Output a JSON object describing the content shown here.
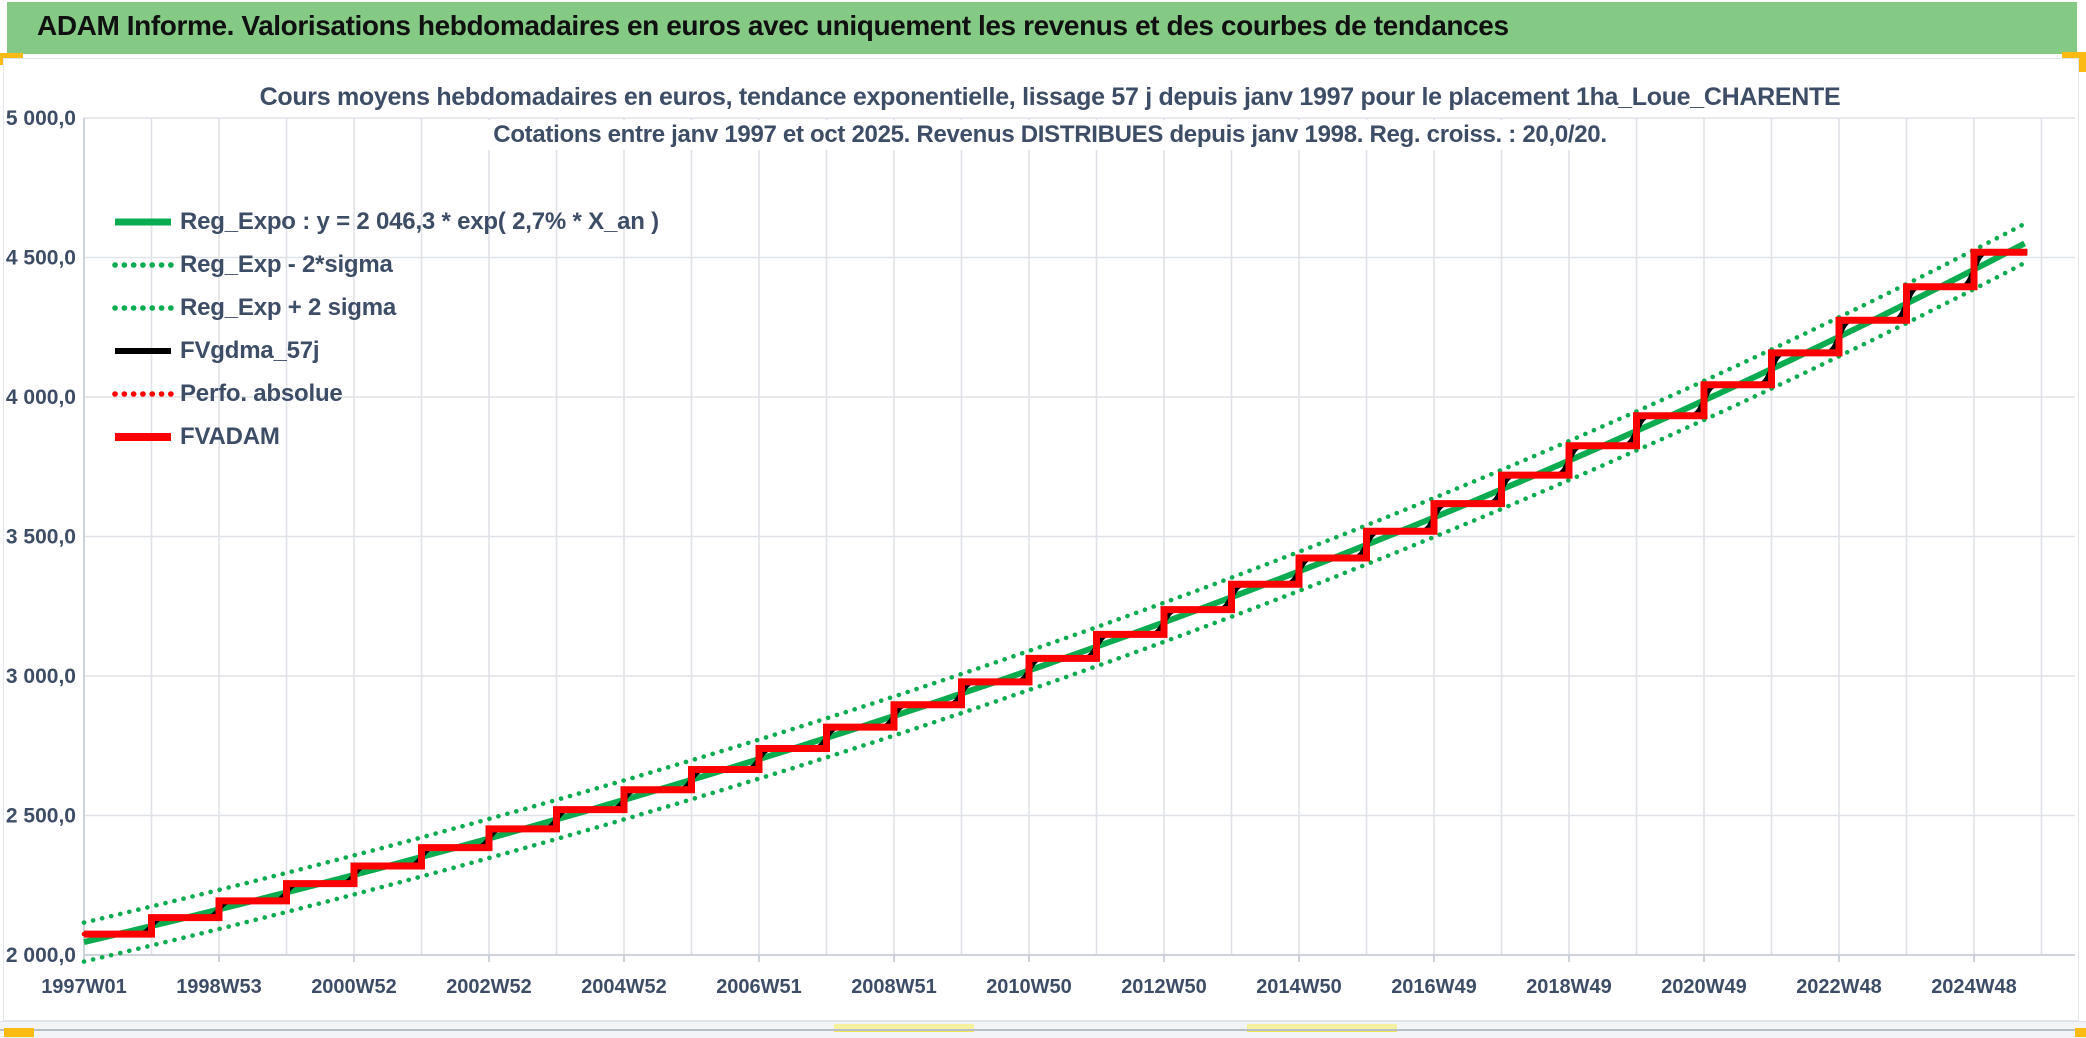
{
  "header": {
    "title": "ADAM Informe. Valorisations hebdomadaires en euros avec uniquement les revenus et des courbes de tendances",
    "bg_color": "#84C984",
    "accent_color": "#FBBB13"
  },
  "chart_data": {
    "type": "line",
    "title_line1": "Cours moyens hebdomadaires en euros, tendance exponentielle, lissage 57 j depuis janv 1997 pour le placement 1ha_Loue_CHARENTE",
    "title_line2": "Cotations entre janv 1997 et oct 2025. Revenus DISTRIBUES depuis janv 1998. Reg. croiss. : 20,0/20.",
    "ylim": [
      2000,
      5000
    ],
    "grid": true,
    "legend_position": "top-left-inside",
    "y_axis": {
      "labels": [
        "5 000,0",
        "4 500,0",
        "4 000,0",
        "3 500,0",
        "3 000,0",
        "2 500,0",
        "2 000,0"
      ],
      "values": [
        5000,
        4500,
        4000,
        3500,
        3000,
        2500,
        2000
      ]
    },
    "x_axis": {
      "labels": [
        "1997W01",
        "1998W53",
        "2000W52",
        "2002W52",
        "2004W52",
        "2006W51",
        "2008W51",
        "2010W50",
        "2012W50",
        "2014W50",
        "2016W49",
        "2018W49",
        "2020W49",
        "2022W48",
        "2024W48"
      ],
      "years_from_start": [
        0,
        2,
        4,
        6,
        8,
        10,
        12,
        14,
        16,
        18,
        20,
        22,
        24,
        26,
        28
      ],
      "minor_grid_step_years": 1,
      "t_start": 0,
      "t_end": 28.79
    },
    "regression": {
      "formula_a": 2046.3,
      "formula_rate_label": "2,7%",
      "annual_rate": 0.0278,
      "two_sigma_offset": 70
    },
    "staircase_years": [
      1997,
      1998,
      1999,
      2000,
      2001,
      2002,
      2003,
      2004,
      2005,
      2006,
      2007,
      2008,
      2009,
      2010,
      2011,
      2012,
      2013,
      2014,
      2015,
      2016,
      2017,
      2018,
      2019,
      2020,
      2021,
      2022,
      2023,
      2024,
      2025
    ],
    "fvadam_levels": [
      2075,
      2134,
      2194,
      2256,
      2319,
      2385,
      2452,
      2521,
      2592,
      2665,
      2740,
      2817,
      2897,
      2979,
      3063,
      3149,
      3238,
      3329,
      3423,
      3519,
      3618,
      3720,
      3825,
      3933,
      4044,
      4158,
      4275,
      4395,
      4519
    ],
    "series": [
      {
        "name": "Reg_Expo : y = 2 046,3 * exp( 2,7% *  X_an )",
        "kind": "regression",
        "color": "#0BAB50",
        "style": "solid",
        "width": 6
      },
      {
        "name": "Reg_Exp - 2*sigma",
        "kind": "band_minus",
        "color": "#0BAB50",
        "style": "dotted",
        "width": 4.6
      },
      {
        "name": "Reg_Exp + 2 sigma",
        "kind": "band_plus",
        "color": "#0BAB50",
        "style": "dotted",
        "width": 4.6
      },
      {
        "name": "FVgdma_57j",
        "kind": "smoothed_staircase",
        "color": "#000000",
        "style": "solid",
        "width": 5
      },
      {
        "name": "Perfo. absolue",
        "kind": "staircase",
        "color": "#FE0000",
        "style": "dotted",
        "width": 4.6
      },
      {
        "name": "FVADAM",
        "kind": "staircase",
        "color": "#FE0000",
        "style": "solid",
        "width": 7
      }
    ],
    "colors": {
      "grid": "#dfe2e7",
      "axis": "#c9ced6",
      "label": "#3E4D66"
    }
  },
  "bottom_bar": {
    "highlight_color": "#f6f1a0",
    "accent_color": "#FBBB13"
  }
}
